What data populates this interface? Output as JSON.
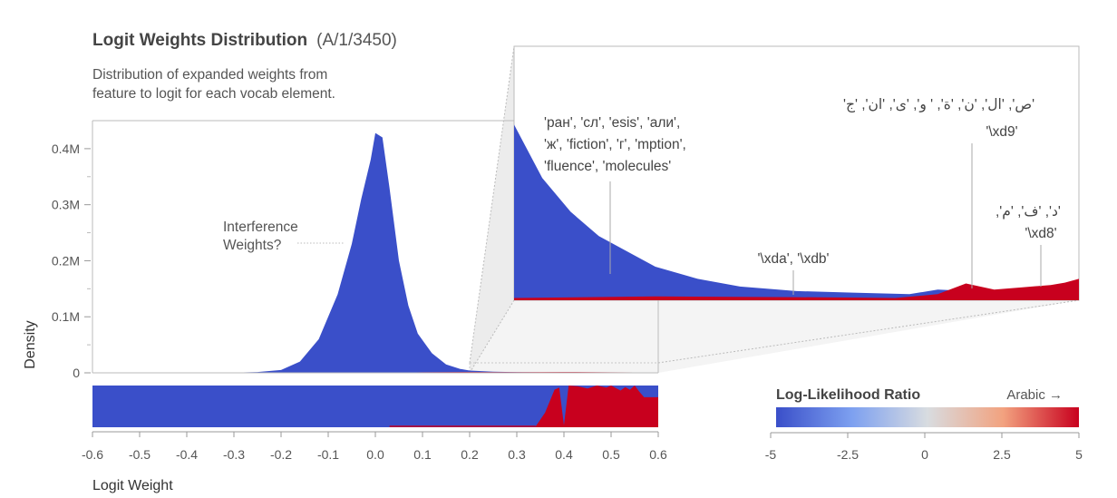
{
  "header": {
    "title": "Logit Weights Distribution",
    "feature_id": "(A/1/3450)",
    "subtitle_line1": "Distribution of expanded weights from",
    "subtitle_line2": "feature to logit for each vocab element."
  },
  "colors": {
    "blue": "#3a4fc9",
    "red": "#c8001e",
    "axis": "#777777",
    "annotation": "#999999"
  },
  "chart_data": [
    {
      "type": "area",
      "name": "main-density",
      "title": "Logit Weights Distribution",
      "xlabel": "Logit Weight",
      "ylabel": "Density",
      "xlim": [
        -0.6,
        0.6
      ],
      "ylim": [
        0,
        450000
      ],
      "x_ticks": [
        -0.6,
        -0.5,
        -0.4,
        -0.3,
        -0.2,
        -0.1,
        0.0,
        0.1,
        0.2,
        0.3,
        0.4,
        0.5,
        0.6
      ],
      "x_tick_labels": [
        "-0.6",
        "-0.5",
        "-0.4",
        "-0.3",
        "-0.2",
        "-0.1",
        "0.0",
        "0.1",
        "0.2",
        "0.3",
        "0.4",
        "0.5",
        "0.6"
      ],
      "y_ticks": [
        0,
        100000,
        200000,
        300000,
        400000
      ],
      "y_tick_labels": [
        "0",
        "0.1M",
        "0.2M",
        "0.3M",
        "0.4M"
      ],
      "series": [
        {
          "color": "blue",
          "x": [
            -0.6,
            -0.4,
            -0.3,
            -0.25,
            -0.2,
            -0.16,
            -0.12,
            -0.08,
            -0.05,
            -0.03,
            -0.01,
            0.0,
            0.015,
            0.03,
            0.05,
            0.07,
            0.09,
            0.12,
            0.15,
            0.18,
            0.2,
            0.25,
            0.3,
            0.4,
            0.5,
            0.6
          ],
          "y": [
            0,
            0,
            500,
            1500,
            5000,
            20000,
            60000,
            140000,
            230000,
            310000,
            380000,
            428000,
            420000,
            330000,
            200000,
            120000,
            70000,
            35000,
            15000,
            7000,
            4000,
            2000,
            1200,
            500,
            200,
            0
          ]
        },
        {
          "color": "red",
          "x": [
            0.03,
            0.1,
            0.2,
            0.3,
            0.4,
            0.5,
            0.6
          ],
          "y": [
            0,
            1000,
            1500,
            1200,
            1500,
            1000,
            600
          ]
        }
      ],
      "annotations": [
        {
          "text": [
            "Interference",
            "Weights?"
          ],
          "x": 0.0,
          "y": 250000
        }
      ]
    },
    {
      "type": "area",
      "name": "zoom-inset",
      "xlim": [
        0.2,
        0.6
      ],
      "ylim": [
        0,
        12000
      ],
      "series": [
        {
          "color": "blue",
          "x": [
            0.2,
            0.22,
            0.24,
            0.26,
            0.28,
            0.3,
            0.33,
            0.36,
            0.4,
            0.44,
            0.48,
            0.5,
            0.55,
            0.6
          ],
          "y": [
            11500,
            8000,
            5800,
            4200,
            3200,
            2200,
            1400,
            900,
            600,
            500,
            400,
            700,
            500,
            0
          ]
        },
        {
          "color": "red",
          "x": [
            0.2,
            0.3,
            0.4,
            0.47,
            0.5,
            0.52,
            0.54,
            0.56,
            0.58,
            0.59,
            0.6
          ],
          "y": [
            150,
            250,
            200,
            150,
            400,
            1100,
            700,
            850,
            1000,
            1150,
            1400
          ]
        }
      ],
      "annotations": [
        {
          "lines": [
            "'ран', 'сл', 'esis', 'али',",
            "'ж', 'fiction', 'г', 'mption',",
            "'fluence', 'molecules'"
          ],
          "x": 0.286
        },
        {
          "lines": [
            "'\\xda', '\\xdb'"
          ],
          "x": 0.4
        },
        {
          "lines": [
            "'ص', 'ال', 'ن', 'ة', ' و', 'ی', 'ان', 'ج'",
            "'\\xd9'"
          ],
          "x": 0.5
        },
        {
          "lines": [
            "'د', 'ف', 'م', ",
            "'\\xd8'"
          ],
          "x": 0.59
        }
      ]
    },
    {
      "type": "area",
      "name": "log-likelihood-strip",
      "xlim": [
        -0.6,
        0.6
      ],
      "ylim": [
        0,
        1
      ],
      "series": [
        {
          "color": "red",
          "x": [
            0.34,
            0.36,
            0.38,
            0.39,
            0.4,
            0.41,
            0.43,
            0.45,
            0.47,
            0.49,
            0.5,
            0.52,
            0.53,
            0.54,
            0.55,
            0.56,
            0.57,
            0.58,
            0.6
          ],
          "y": [
            0.02,
            0.35,
            0.9,
            0.95,
            0.05,
            1.0,
            0.98,
            0.93,
            1.0,
            0.95,
            1.0,
            0.88,
            0.96,
            0.9,
            1.0,
            0.85,
            0.72,
            0.72,
            0.72
          ]
        }
      ]
    }
  ],
  "colorbar": {
    "title": "Log-Likelihood Ratio",
    "direction_label": "Arabic",
    "arrow": "→",
    "min": -5,
    "max": 5,
    "ticks": [
      -5,
      -2.5,
      0,
      2.5,
      5
    ],
    "tick_labels": [
      "-5",
      "-2.5",
      "0",
      "2.5",
      "5"
    ],
    "stops": [
      "#3a4fc9",
      "#7da0f0",
      "#d8dce0",
      "#f2a27f",
      "#c8001e"
    ]
  }
}
